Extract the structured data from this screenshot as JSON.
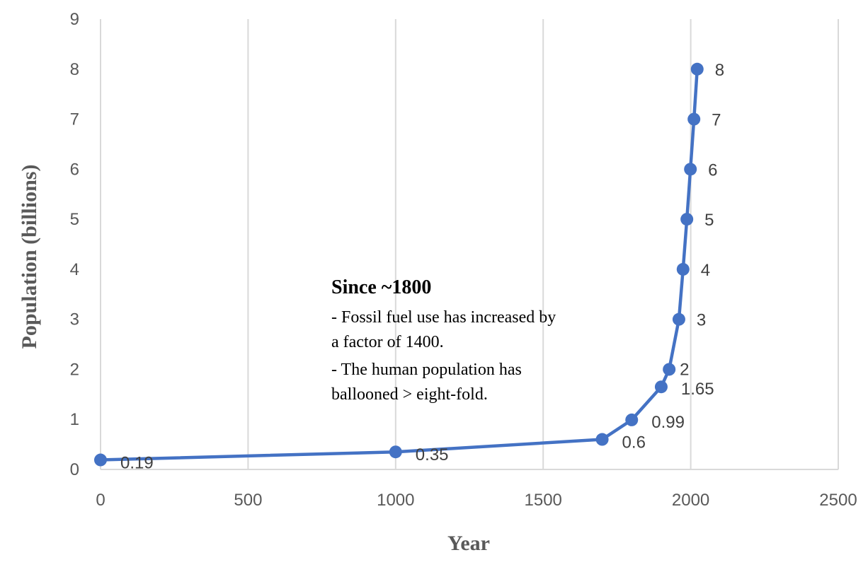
{
  "chart_data": {
    "type": "line",
    "title": "",
    "xlabel": "Year",
    "ylabel": "Population (billions)",
    "xlim": [
      0,
      2500
    ],
    "ylim": [
      0,
      9
    ],
    "xticks": [
      0,
      500,
      1000,
      1500,
      2000,
      2500
    ],
    "yticks": [
      0,
      1,
      2,
      3,
      4,
      5,
      6,
      7,
      8,
      9
    ],
    "grid": "vertical",
    "legend": "none",
    "series": [
      {
        "color": "#4472c4",
        "marker": "circle",
        "points": [
          {
            "x": 0,
            "y": 0.19,
            "label": "0.19"
          },
          {
            "x": 1000,
            "y": 0.35,
            "label": "0.35"
          },
          {
            "x": 1700,
            "y": 0.6,
            "label": "0.6"
          },
          {
            "x": 1800,
            "y": 0.99,
            "label": "0.99"
          },
          {
            "x": 1900,
            "y": 1.65,
            "label": "1.65"
          },
          {
            "x": 1927,
            "y": 2,
            "label": "2"
          },
          {
            "x": 1960,
            "y": 3,
            "label": "3"
          },
          {
            "x": 1974,
            "y": 4,
            "label": "4"
          },
          {
            "x": 1987,
            "y": 5,
            "label": "5"
          },
          {
            "x": 1999,
            "y": 6,
            "label": "6"
          },
          {
            "x": 2011,
            "y": 7,
            "label": "7"
          },
          {
            "x": 2022,
            "y": 8,
            "label": "8"
          }
        ]
      }
    ],
    "annotation": {
      "title": "Since ~1800",
      "lines": [
        "- Fossil fuel use has increased by",
        "a factor of 1400.",
        "- The human population has",
        "ballooned  > eight-fold."
      ]
    }
  }
}
